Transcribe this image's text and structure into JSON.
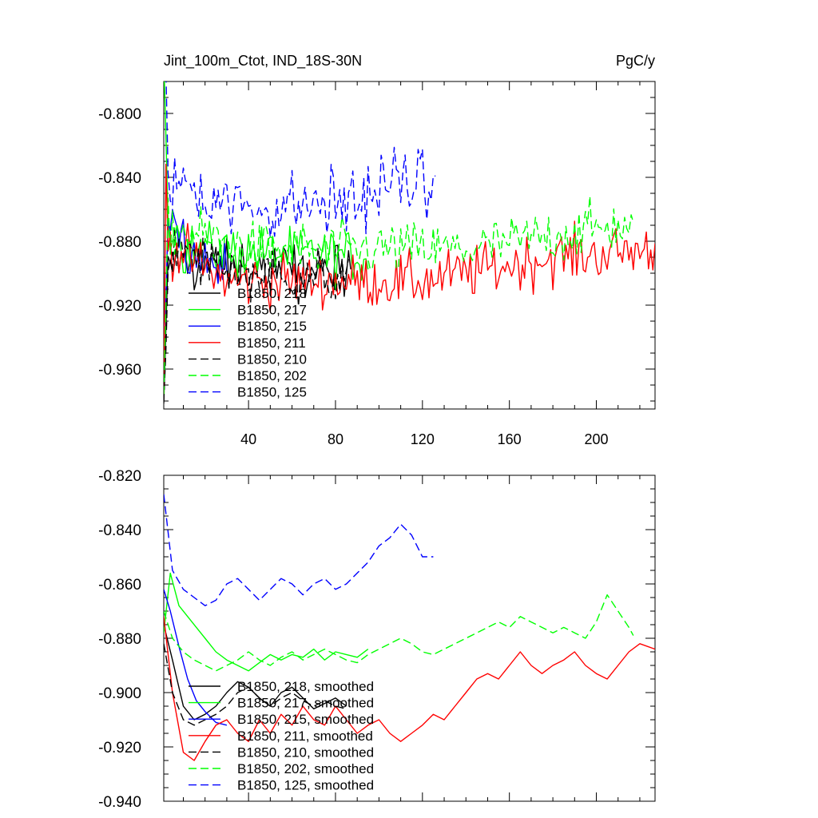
{
  "figure": {
    "title_left": "Jint_100m_Ctot, IND_18S-30N",
    "title_right": "PgC/y"
  },
  "chart_data": [
    {
      "type": "line",
      "title": "Jint_100m_Ctot, IND_18S-30N",
      "units": "PgC/y",
      "xlim": [
        1,
        227
      ],
      "ylim": [
        -0.985,
        -0.78
      ],
      "xticks": [
        40,
        80,
        120,
        160,
        200
      ],
      "yticks": [
        -0.96,
        -0.92,
        -0.88,
        -0.84,
        -0.8
      ],
      "ytick_labels": [
        "-0.960",
        "-0.920",
        "-0.880",
        "-0.840",
        "-0.800"
      ],
      "legend_position": "lower-left",
      "series": [
        {
          "name": "B1850, 218",
          "color": "#000000",
          "dash": "solid",
          "length": 87
        },
        {
          "name": "B1850, 217",
          "color": "#00ff00",
          "dash": "solid",
          "length": 95
        },
        {
          "name": "B1850, 215",
          "color": "#0000ff",
          "dash": "solid",
          "length": 30
        },
        {
          "name": "B1850, 211",
          "color": "#ff0000",
          "dash": "solid",
          "length": 227
        },
        {
          "name": "B1850, 210",
          "color": "#000000",
          "dash": "dashed",
          "length": 86
        },
        {
          "name": "B1850, 202",
          "color": "#00ff00",
          "dash": "dashed",
          "length": 217
        },
        {
          "name": "B1850, 125",
          "color": "#0000ff",
          "dash": "dashed",
          "length": 126
        }
      ]
    },
    {
      "type": "line",
      "xlim": [
        1,
        227
      ],
      "ylim": [
        -0.94,
        -0.82
      ],
      "xticks": [
        40,
        80,
        120,
        160,
        200
      ],
      "yticks": [
        -0.94,
        -0.92,
        -0.9,
        -0.88,
        -0.86,
        -0.84,
        -0.82
      ],
      "ytick_labels": [
        "-0.940",
        "-0.920",
        "-0.900",
        "-0.880",
        "-0.860",
        "-0.840",
        "-0.820"
      ],
      "legend_position": "lower-left",
      "series": [
        {
          "name": "B1850, 218, smoothed",
          "color": "#000000",
          "dash": "solid",
          "x": [
            1,
            5,
            10,
            15,
            20,
            25,
            30,
            35,
            40,
            45,
            50,
            55,
            60,
            65,
            70,
            75,
            80,
            85
          ],
          "values": [
            -0.875,
            -0.888,
            -0.905,
            -0.91,
            -0.908,
            -0.905,
            -0.9,
            -0.896,
            -0.898,
            -0.902,
            -0.905,
            -0.9,
            -0.898,
            -0.902,
            -0.906,
            -0.904,
            -0.902,
            -0.905
          ]
        },
        {
          "name": "B1850, 217, smoothed",
          "color": "#00ff00",
          "dash": "solid",
          "x": [
            1,
            4,
            8,
            12,
            16,
            20,
            25,
            30,
            35,
            40,
            45,
            50,
            55,
            60,
            65,
            70,
            75,
            80,
            85,
            90,
            95
          ],
          "values": [
            -0.878,
            -0.856,
            -0.868,
            -0.872,
            -0.876,
            -0.88,
            -0.885,
            -0.888,
            -0.89,
            -0.892,
            -0.889,
            -0.886,
            -0.888,
            -0.886,
            -0.887,
            -0.884,
            -0.888,
            -0.885,
            -0.886,
            -0.887,
            -0.884
          ]
        },
        {
          "name": "B1850, 215, smoothed",
          "color": "#0000ff",
          "dash": "solid",
          "x": [
            1,
            4,
            8,
            12,
            16,
            20,
            25,
            30
          ],
          "values": [
            -0.862,
            -0.87,
            -0.883,
            -0.895,
            -0.903,
            -0.907,
            -0.911,
            -0.912
          ]
        },
        {
          "name": "B1850, 211, smoothed",
          "color": "#ff0000",
          "dash": "solid",
          "x": [
            1,
            5,
            10,
            15,
            20,
            25,
            30,
            35,
            40,
            45,
            50,
            55,
            60,
            65,
            70,
            75,
            80,
            85,
            90,
            95,
            100,
            105,
            110,
            115,
            120,
            125,
            130,
            135,
            140,
            145,
            150,
            155,
            160,
            165,
            170,
            175,
            180,
            185,
            190,
            195,
            200,
            205,
            210,
            215,
            220,
            227
          ],
          "values": [
            -0.872,
            -0.9,
            -0.922,
            -0.925,
            -0.918,
            -0.912,
            -0.91,
            -0.915,
            -0.918,
            -0.91,
            -0.915,
            -0.908,
            -0.912,
            -0.905,
            -0.91,
            -0.912,
            -0.905,
            -0.91,
            -0.915,
            -0.912,
            -0.91,
            -0.915,
            -0.918,
            -0.915,
            -0.912,
            -0.908,
            -0.91,
            -0.905,
            -0.9,
            -0.895,
            -0.893,
            -0.895,
            -0.89,
            -0.885,
            -0.89,
            -0.893,
            -0.89,
            -0.888,
            -0.885,
            -0.89,
            -0.893,
            -0.895,
            -0.89,
            -0.885,
            -0.882,
            -0.884
          ]
        },
        {
          "name": "B1850, 210, smoothed",
          "color": "#000000",
          "dash": "dashed",
          "x": [
            1,
            5,
            10,
            15,
            20,
            25,
            30,
            35,
            40,
            45,
            50,
            55,
            60,
            65,
            70,
            75,
            80,
            85
          ],
          "values": [
            -0.882,
            -0.9,
            -0.91,
            -0.912,
            -0.91,
            -0.908,
            -0.905,
            -0.9,
            -0.898,
            -0.902,
            -0.905,
            -0.902,
            -0.9,
            -0.903,
            -0.905,
            -0.903,
            -0.905,
            -0.906
          ]
        },
        {
          "name": "B1850, 202, smoothed",
          "color": "#00ff00",
          "dash": "dashed",
          "x": [
            1,
            5,
            10,
            15,
            20,
            25,
            30,
            35,
            40,
            45,
            50,
            55,
            60,
            65,
            70,
            75,
            80,
            85,
            90,
            95,
            100,
            105,
            110,
            115,
            120,
            125,
            130,
            135,
            140,
            145,
            150,
            155,
            160,
            165,
            170,
            175,
            180,
            185,
            190,
            195,
            200,
            205,
            210,
            215,
            217
          ],
          "values": [
            -0.87,
            -0.88,
            -0.885,
            -0.888,
            -0.89,
            -0.892,
            -0.89,
            -0.888,
            -0.885,
            -0.888,
            -0.89,
            -0.887,
            -0.885,
            -0.888,
            -0.886,
            -0.884,
            -0.886,
            -0.888,
            -0.889,
            -0.886,
            -0.884,
            -0.882,
            -0.88,
            -0.882,
            -0.885,
            -0.886,
            -0.884,
            -0.882,
            -0.88,
            -0.878,
            -0.876,
            -0.874,
            -0.876,
            -0.872,
            -0.874,
            -0.876,
            -0.878,
            -0.876,
            -0.878,
            -0.88,
            -0.874,
            -0.864,
            -0.87,
            -0.876,
            -0.879
          ]
        },
        {
          "name": "B1850, 125, smoothed",
          "color": "#0000ff",
          "dash": "dashed",
          "x": [
            1,
            5,
            10,
            15,
            20,
            25,
            30,
            35,
            40,
            45,
            50,
            55,
            60,
            65,
            70,
            75,
            80,
            85,
            90,
            95,
            100,
            105,
            110,
            115,
            120,
            125
          ],
          "values": [
            -0.827,
            -0.855,
            -0.862,
            -0.865,
            -0.868,
            -0.866,
            -0.86,
            -0.858,
            -0.862,
            -0.866,
            -0.862,
            -0.858,
            -0.86,
            -0.864,
            -0.86,
            -0.858,
            -0.862,
            -0.86,
            -0.856,
            -0.852,
            -0.846,
            -0.843,
            -0.838,
            -0.842,
            -0.85,
            -0.85
          ]
        }
      ]
    }
  ]
}
